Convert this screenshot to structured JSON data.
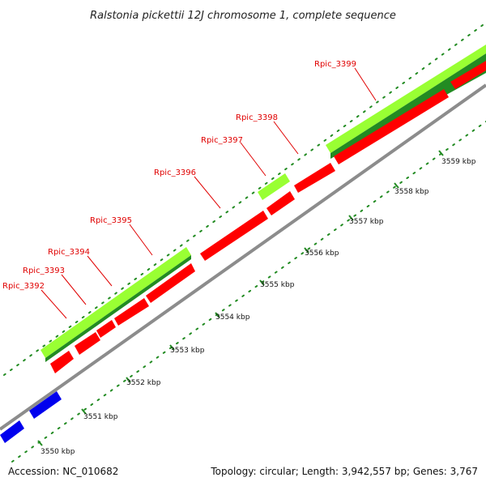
{
  "title": "Ralstonia pickettii 12J chromosome 1, complete sequence",
  "footer": {
    "accession": "Accession: NC_010682",
    "summary": "Topology: circular; Length: 3,942,557 bp; Genes: 3,767"
  },
  "kbp_ticks": [
    "3550 kbp",
    "3551 kbp",
    "3552 kbp",
    "3553 kbp",
    "3554 kbp",
    "3555 kbp",
    "3556 kbp",
    "3557 kbp",
    "3558 kbp",
    "3559 kbp"
  ],
  "gene_labels": [
    "Rpic_3392",
    "Rpic_3393",
    "Rpic_3394",
    "Rpic_3395",
    "Rpic_3396",
    "Rpic_3397",
    "Rpic_3398",
    "Rpic_3399"
  ],
  "colors": {
    "cds_forward": "#ff0000",
    "cds_reverse_blue": "#0000ee",
    "gene_light": "#99ff33",
    "gene_dark": "#228b22",
    "backbone": "#8c8c8c",
    "tick": "#228b22",
    "label": "#e00000"
  }
}
